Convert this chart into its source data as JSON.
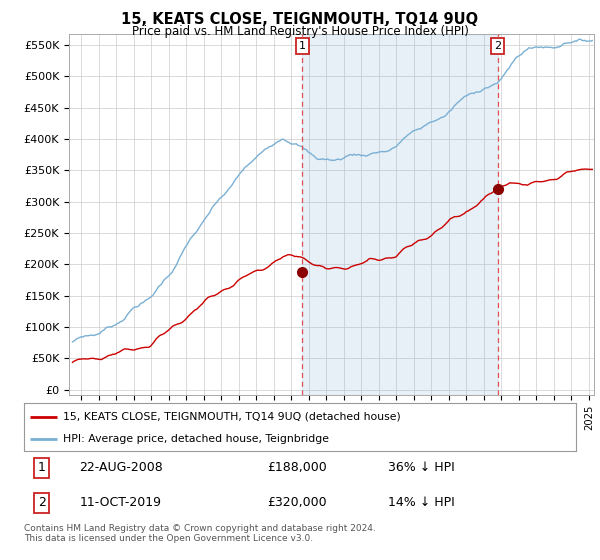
{
  "title": "15, KEATS CLOSE, TEIGNMOUTH, TQ14 9UQ",
  "subtitle": "Price paid vs. HM Land Registry's House Price Index (HPI)",
  "ylabel_ticks": [
    "£0",
    "£50K",
    "£100K",
    "£150K",
    "£200K",
    "£250K",
    "£300K",
    "£350K",
    "£400K",
    "£450K",
    "£500K",
    "£550K"
  ],
  "ytick_values": [
    0,
    50000,
    100000,
    150000,
    200000,
    250000,
    300000,
    350000,
    400000,
    450000,
    500000,
    550000
  ],
  "hpi_color": "#7ab0d4",
  "hpi_fill_color": "#d6e8f5",
  "price_color": "#cc0000",
  "vline_color": "#e05050",
  "sale1_year": 2008.63,
  "sale1_price": 188000,
  "sale2_year": 2019.79,
  "sale2_price": 320000,
  "legend_house": "15, KEATS CLOSE, TEIGNMOUTH, TQ14 9UQ (detached house)",
  "legend_hpi": "HPI: Average price, detached house, Teignbridge",
  "table_row1": [
    "1",
    "22-AUG-2008",
    "£188,000",
    "36% ↓ HPI"
  ],
  "table_row2": [
    "2",
    "11-OCT-2019",
    "£320,000",
    "14% ↓ HPI"
  ],
  "footer": "Contains HM Land Registry data © Crown copyright and database right 2024.\nThis data is licensed under the Open Government Licence v3.0.",
  "background_color": "#ffffff",
  "plot_bg_color": "#ffffff",
  "grid_color": "#cccccc",
  "xstart": 1995.5,
  "xend": 2025.2
}
